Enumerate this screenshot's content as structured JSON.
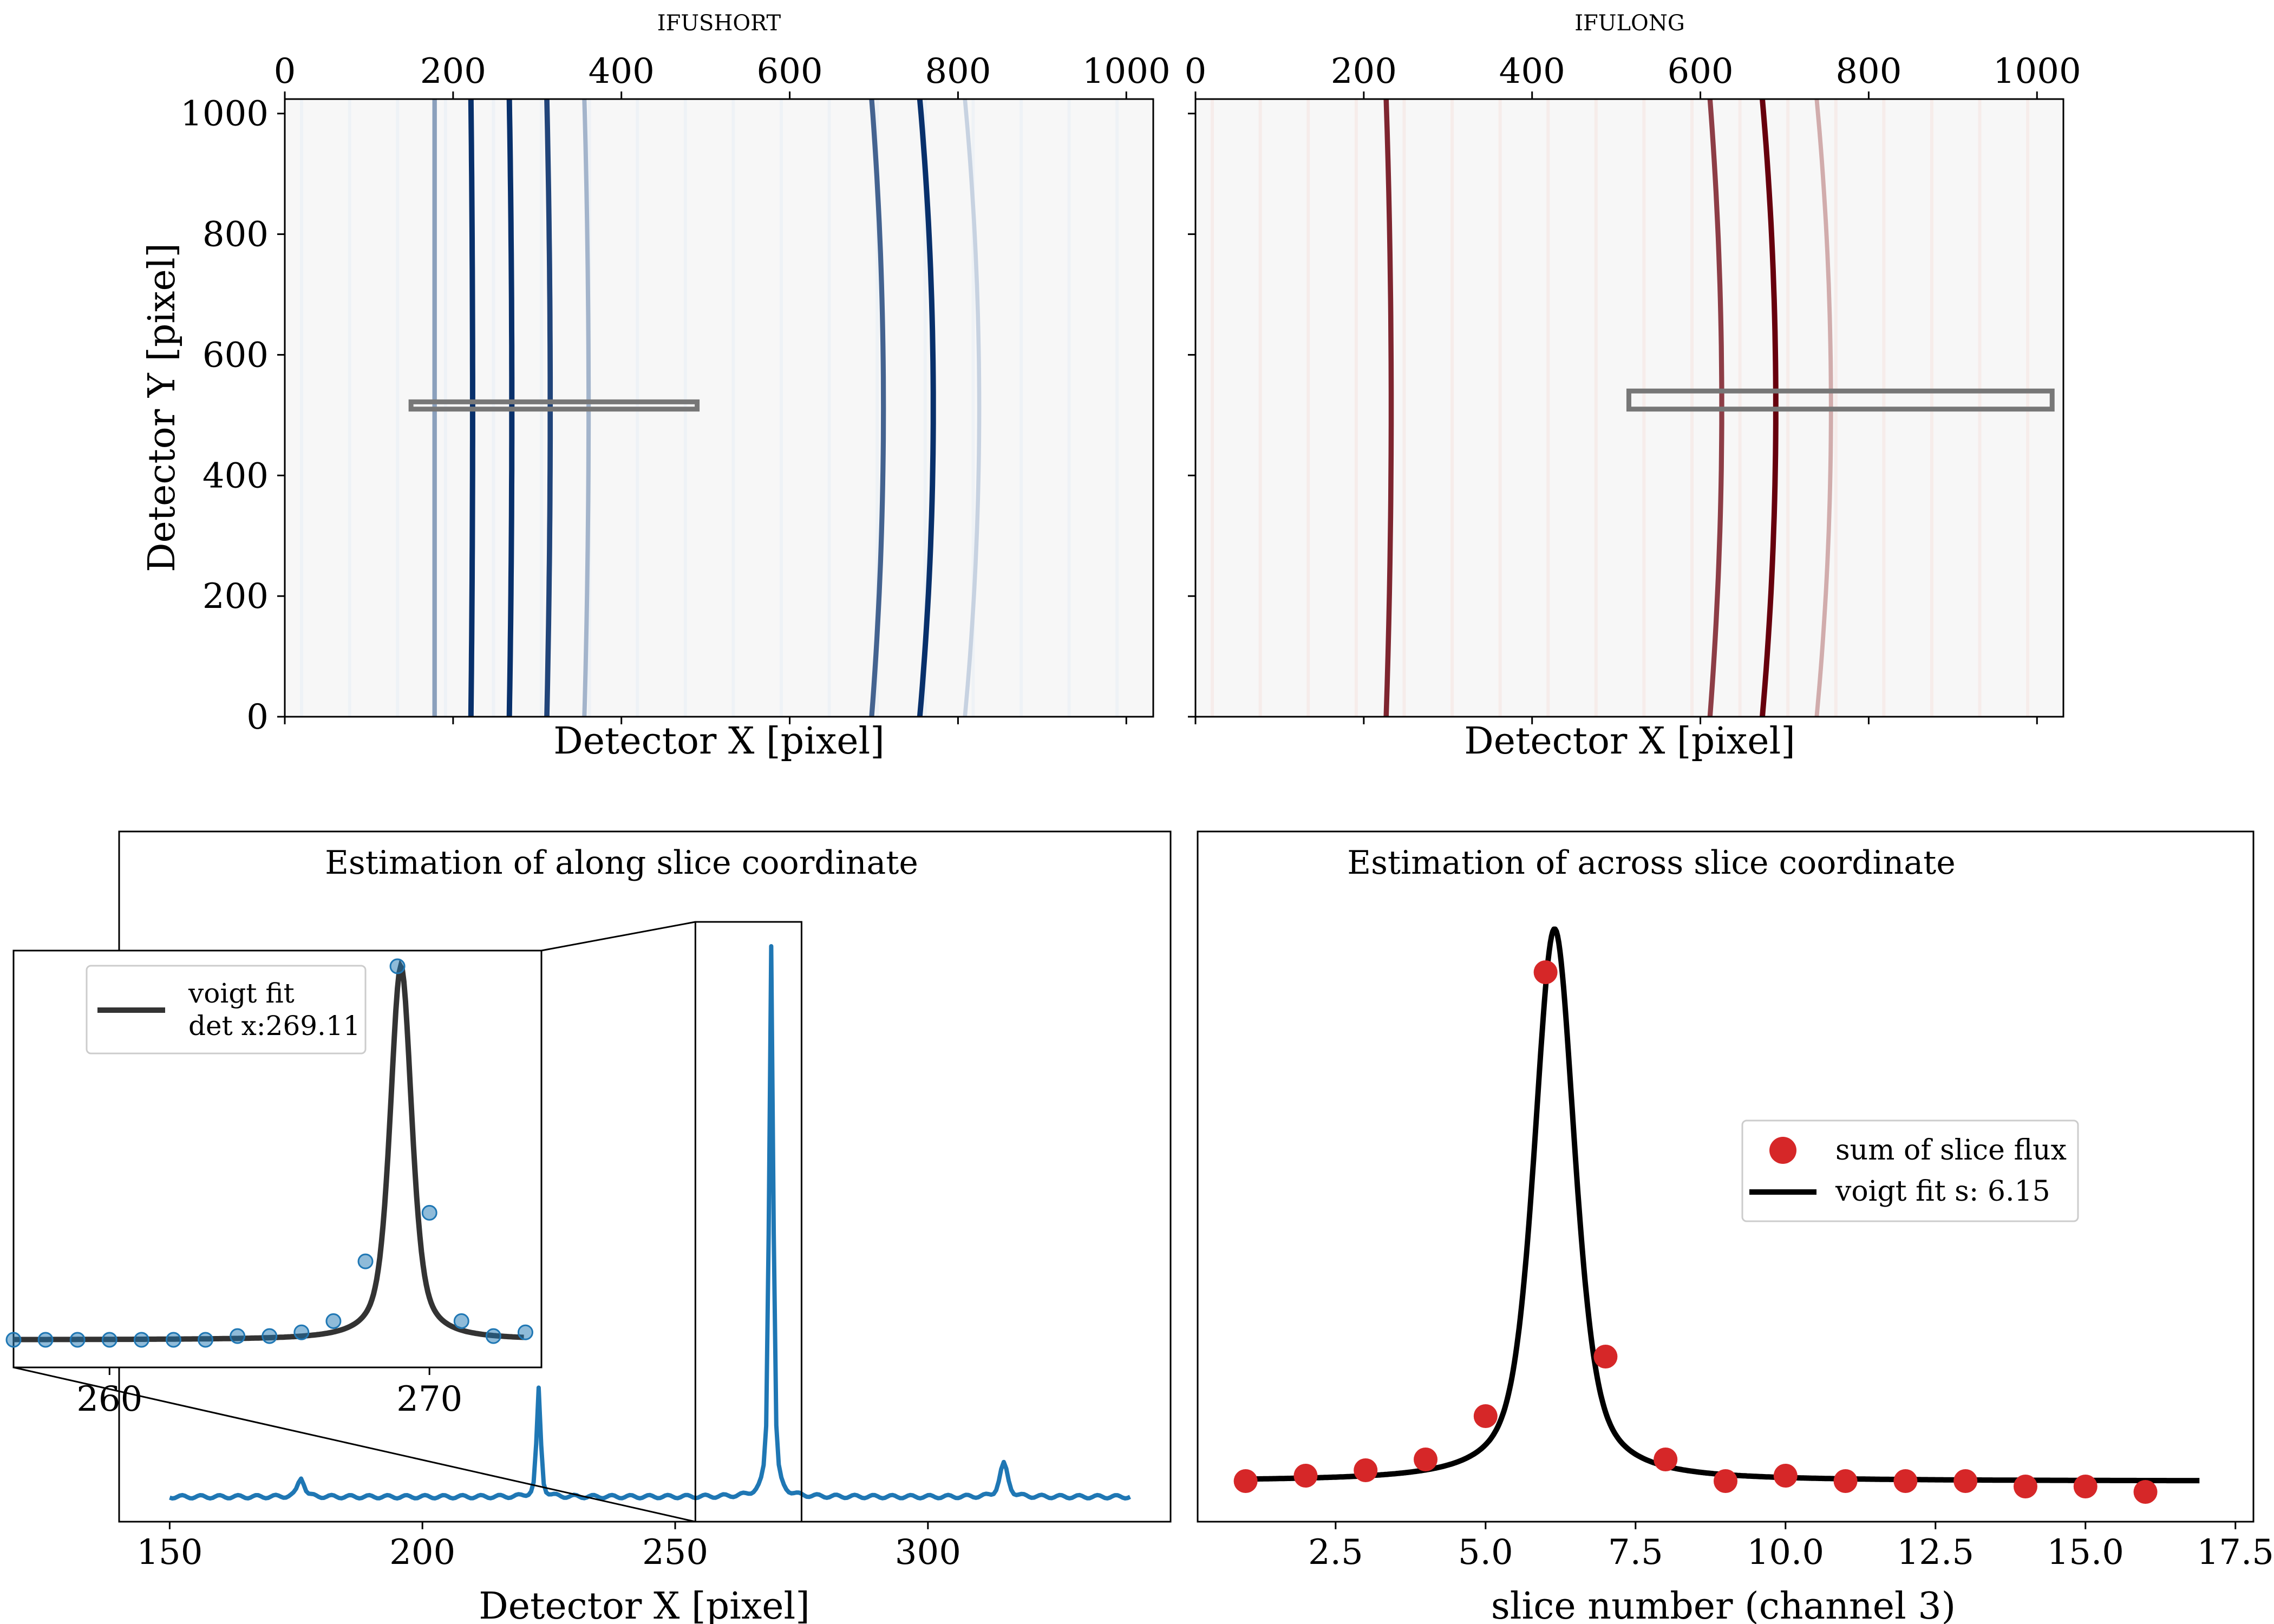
{
  "figure": {
    "panels": {
      "ifushort": {
        "title": "IFUSHORT",
        "xlabel": "Detector X [pixel]",
        "ylabel": "Detector Y [pixel]"
      },
      "ifulong": {
        "title": "IFULONG",
        "xlabel": "Detector X [pixel]"
      },
      "along": {
        "title": "Estimation of along slice coordinate",
        "xlabel": "Detector X [pixel]"
      },
      "across": {
        "title": "Estimation of across slice coordinate",
        "xlabel": "slice number (channel 3)"
      }
    },
    "colors": {
      "blue_line": "#1f77b4",
      "red_points": "#d62728",
      "fit_line": "#000000",
      "inset_fit_line": "#333333",
      "box": "#777777",
      "detector_bg": "#f7f7f7"
    }
  },
  "chart_data": [
    {
      "type": "heatmap",
      "title": "IFUSHORT",
      "xlabel": "Detector X [pixel]",
      "ylabel": "Detector Y [pixel]",
      "xlim": [
        0,
        1032
      ],
      "ylim": [
        0,
        1024
      ],
      "xticks": [
        0,
        200,
        400,
        600,
        800,
        1000
      ],
      "yticks": [
        0,
        200,
        400,
        600,
        800,
        1000
      ],
      "colormap": "Blues",
      "lines": [
        {
          "x": 178,
          "curve": 0,
          "intensity": 0.45
        },
        {
          "x": 222,
          "curve": 2,
          "intensity": 1.0
        },
        {
          "x": 268,
          "curve": 3,
          "intensity": 1.0
        },
        {
          "x": 313,
          "curve": 4,
          "intensity": 0.9
        },
        {
          "x": 358,
          "curve": 5,
          "intensity": 0.35
        },
        {
          "x": 703,
          "curve": 14,
          "intensity": 0.75
        },
        {
          "x": 761,
          "curve": 16,
          "intensity": 1.0
        },
        {
          "x": 815,
          "curve": 17,
          "intensity": 0.2
        }
      ],
      "selection_box": {
        "x0": 150,
        "x1": 490,
        "y0": 510,
        "y1": 522
      }
    },
    {
      "type": "heatmap",
      "title": "IFULONG",
      "xlabel": "Detector X [pixel]",
      "xlim": [
        0,
        1032
      ],
      "ylim": [
        0,
        1024
      ],
      "xticks": [
        0,
        200,
        400,
        600,
        800,
        1000
      ],
      "colormap": "Reds",
      "lines": [
        {
          "x": 229,
          "curve": 6,
          "intensity": 0.85
        },
        {
          "x": 617,
          "curve": 14,
          "intensity": 0.75
        },
        {
          "x": 680,
          "curve": 16,
          "intensity": 1.0
        },
        {
          "x": 745,
          "curve": 17,
          "intensity": 0.3
        }
      ],
      "selection_box": {
        "x0": 515,
        "x1": 1018,
        "y0": 510,
        "y1": 540
      }
    },
    {
      "type": "line",
      "title": "Estimation of along slice coordinate",
      "xlabel": "Detector X [pixel]",
      "xlim": [
        140,
        348
      ],
      "xticks": [
        150,
        200,
        250,
        300
      ],
      "ylim": [
        -0.05,
        1.05
      ],
      "series": [
        {
          "peaks": [
            {
              "center": 176,
              "height": 0.035,
              "width": 0.8
            },
            {
              "center": 223,
              "height": 0.195,
              "width": 0.5
            },
            {
              "center": 269,
              "height": 1.0,
              "width": 0.5
            },
            {
              "center": 315,
              "height": 0.06,
              "width": 1.0
            }
          ],
          "x_range": [
            150,
            340
          ]
        }
      ],
      "zoom_box": {
        "x0": 254,
        "x1": 275
      },
      "inset": {
        "xlim": [
          257,
          273.5
        ],
        "xticks": [
          260,
          270
        ],
        "points_x": [
          257.0,
          258.0,
          259.0,
          260.0,
          261.0,
          262.0,
          263.0,
          264.0,
          265.0,
          266.0,
          267.0,
          268.0,
          269.0,
          270.0,
          271.0,
          272.0,
          273.0
        ],
        "points_y": [
          0.0,
          0.0,
          0.0,
          0.0,
          0.0,
          0.0,
          0.0,
          0.01,
          0.01,
          0.02,
          0.05,
          0.21,
          1.0,
          0.34,
          0.05,
          0.01,
          0.02
        ],
        "fit_center": 269.11,
        "legend": [
          "voigt fit",
          "det x:269.11"
        ]
      }
    },
    {
      "type": "scatter",
      "title": "Estimation of across slice coordinate",
      "xlabel": "slice number (channel 3)",
      "xlim": [
        0.2,
        17.8
      ],
      "xticks": [
        2.5,
        5.0,
        7.5,
        10.0,
        12.5,
        15.0,
        17.5
      ],
      "ylim": [
        -0.05,
        1.05
      ],
      "series": [
        {
          "name": "sum of slice flux",
          "x": [
            1,
            2,
            3,
            4,
            5,
            6,
            7,
            8,
            9,
            10,
            11,
            12,
            13,
            14,
            15,
            16
          ],
          "y": [
            0.0,
            0.01,
            0.02,
            0.04,
            0.12,
            0.94,
            0.23,
            0.04,
            0.0,
            0.01,
            0.0,
            0.0,
            0.0,
            -0.01,
            -0.01,
            -0.02
          ]
        },
        {
          "name": "voigt fit s: 6.15",
          "fit_center": 6.15,
          "x_range": [
            1,
            16.9
          ]
        }
      ]
    }
  ]
}
